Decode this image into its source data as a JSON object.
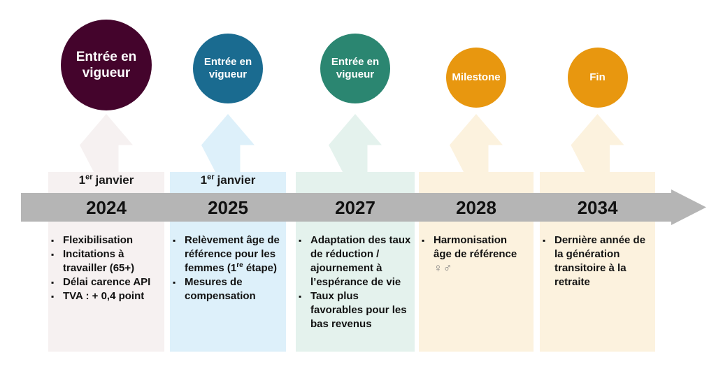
{
  "timeline": {
    "bar_color": "#B5B5B5",
    "columns": [
      {
        "circle_label": "Entrée en vigueur",
        "circle_color": "#44042C",
        "band_color": "#F6F1F1",
        "date": {
          "day": "1",
          "sup": "er",
          "month": "janvier"
        },
        "year": "2024",
        "bullets": [
          "Flexibilisation",
          "Incitations à travailler (65+)",
          "Délai carence API",
          "TVA : + 0,4 point"
        ]
      },
      {
        "circle_label": "Entrée en vigueur",
        "circle_color": "#1A6B90",
        "band_color": "#DDF0FA",
        "date": {
          "day": "1",
          "sup": "er",
          "month": "janvier"
        },
        "year": "2025",
        "bullet1": {
          "pre": "Relèvement âge de référence pour les femmes (1",
          "sup": "re",
          "post": " étape)"
        },
        "bullet2": "Mesures de compensation"
      },
      {
        "circle_label": "Entrée en vigueur",
        "circle_color": "#2B8671",
        "band_color": "#E4F2ED",
        "year": "2027",
        "bullets": [
          "Adaptation des taux de réduction / ajournement à l’espérance de vie",
          "Taux plus favorables pour les bas revenus"
        ]
      },
      {
        "circle_label": "Milestone",
        "circle_color": "#E8970F",
        "band_color": "#FCF2DE",
        "year": "2028",
        "bullet1": {
          "text": "Harmonisation âge de référence ",
          "symbols": "♀♂"
        }
      },
      {
        "circle_label": "Fin",
        "circle_color": "#E8970F",
        "band_color": "#FCF2DE",
        "year": "2034",
        "bullets": [
          "Dernière année de la génération transitoire à la retraite"
        ]
      }
    ]
  }
}
